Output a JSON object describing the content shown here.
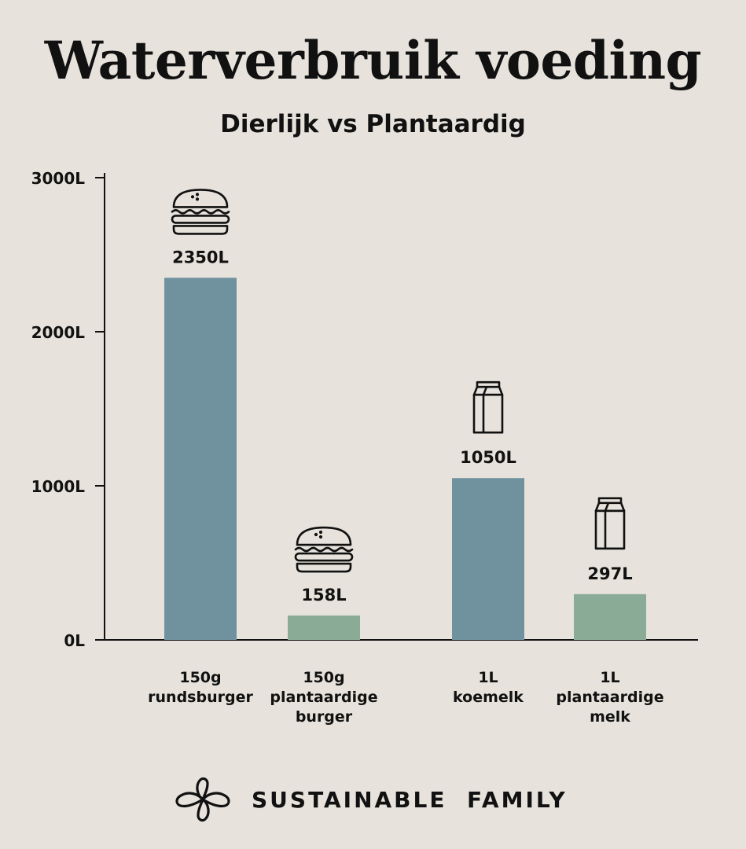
{
  "title": "Waterverbruik voeding",
  "subtitle": "Dierlijk vs Plantaardig",
  "footer": {
    "brand": "SUSTAINABLE  FAMILY",
    "logo_icon": "infinity-knot-logo-icon"
  },
  "colors": {
    "background": "#e7e3dc",
    "animal": "#6f929e",
    "plant": "#8aab96",
    "text": "#111111"
  },
  "chart_data": {
    "type": "bar",
    "ylim": [
      0,
      3000
    ],
    "yticks": [
      {
        "value": 0,
        "label": "0L"
      },
      {
        "value": 1000,
        "label": "1000L"
      },
      {
        "value": 2000,
        "label": "2000L"
      },
      {
        "value": 3000,
        "label": "3000L"
      }
    ],
    "bars": [
      {
        "label_lines": [
          "150g",
          "rundsburger"
        ],
        "value": 2350,
        "value_label": "2350L",
        "kind": "animal",
        "icon": "burger-icon"
      },
      {
        "label_lines": [
          "150g",
          "plantaardige",
          "burger"
        ],
        "value": 158,
        "value_label": "158L",
        "kind": "plant",
        "icon": "burger-icon"
      },
      {
        "label_lines": [
          "1L",
          "koemelk"
        ],
        "value": 1050,
        "value_label": "1050L",
        "kind": "animal",
        "icon": "milk-carton-icon"
      },
      {
        "label_lines": [
          "1L",
          "plantaardige",
          "melk"
        ],
        "value": 297,
        "value_label": "297L",
        "kind": "plant",
        "icon": "milk-carton-icon"
      }
    ]
  }
}
